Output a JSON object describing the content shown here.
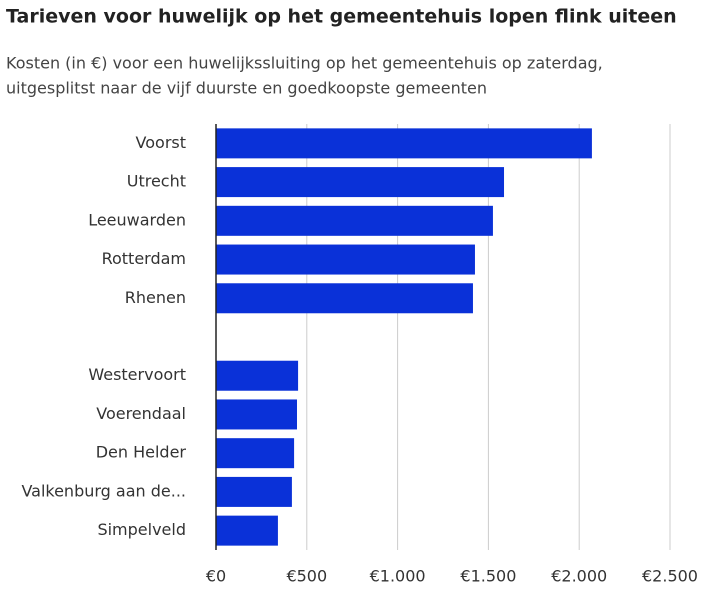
{
  "chart_data": {
    "type": "bar",
    "orientation": "horizontal",
    "title": "Tarieven voor huwelijk op het gemeentehuis lopen flink uiteen",
    "subtitle": [
      "Kosten (in €) voor een huwelijkssluiting op het gemeentehuis op zaterdag,",
      "uitgesplitst naar de vijf duurste en goedkoopste gemeenten"
    ],
    "categories": [
      "Voorst",
      "Utrecht",
      "Leeuwarden",
      "Rotterdam",
      "Rhenen",
      null,
      "Westervoort",
      "Voerendaal",
      "Den Helder",
      "Valkenburg aan de...",
      "Simpelveld"
    ],
    "values": [
      2070,
      1586,
      1525,
      1426,
      1415,
      null,
      452,
      446,
      430,
      418,
      341
    ],
    "color": "#0a31d8",
    "xlim": [
      0,
      2500
    ],
    "xticks": [
      {
        "value": 0,
        "label": "€0"
      },
      {
        "value": 500,
        "label": "€500"
      },
      {
        "value": 1000,
        "label": "€1.000"
      },
      {
        "value": 1500,
        "label": "€1.500"
      },
      {
        "value": 2000,
        "label": "€2.000"
      },
      {
        "value": 2500,
        "label": "€2.500"
      }
    ],
    "grid": true
  }
}
